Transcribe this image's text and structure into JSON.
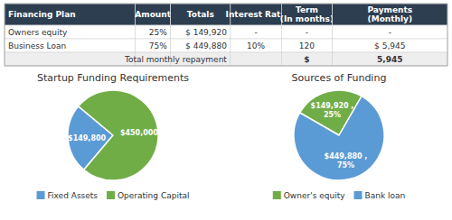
{
  "chart_data": [
    {
      "type": "table",
      "color": "#2d3e50",
      "columns": [
        "Financing Plan",
        "Amount",
        "Totals",
        "Interest Rate",
        "Term\n(In months)",
        "Payments\n(Monthly)"
      ],
      "rows": [
        [
          "Owners equity",
          "25%",
          "$ 149,920",
          "-",
          "-",
          "-"
        ],
        [
          "Business Loan",
          "75%",
          "$ 449,880",
          "10%",
          "120",
          "$ 5,945"
        ],
        [
          null,
          null,
          "Total monthly repayment",
          null,
          "$",
          "5,945"
        ]
      ]
    },
    {
      "type": "pie",
      "title": "Startup Funding Requirements",
      "categories": [
        "Fixed Assets",
        "Operating Capital"
      ],
      "values": [
        149800,
        450000
      ],
      "value_labels": [
        "$149,800",
        "$450,000"
      ],
      "colors": [
        "#5b9bd5",
        "#70ad47"
      ],
      "data_labels": true,
      "legend": "bottom"
    },
    {
      "type": "pie",
      "title": "Sources of Funding",
      "categories": [
        "Owner's equity",
        "Bank loan"
      ],
      "values": [
        149920,
        449880
      ],
      "value_labels": [
        "$149,920 ,\n25%",
        "$449,880 ,\n75%"
      ],
      "colors": [
        "#70ad47",
        "#5b9bd5"
      ],
      "data_labels": true,
      "legend": "bottom"
    }
  ]
}
